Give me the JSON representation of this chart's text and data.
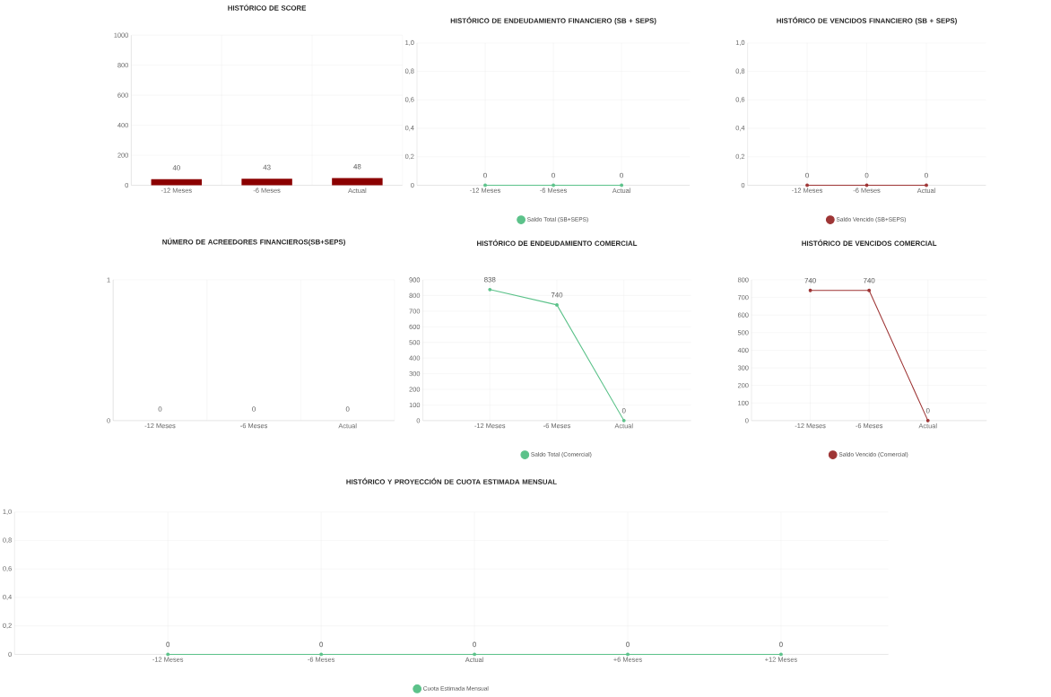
{
  "chart_data": [
    {
      "type": "bar",
      "title": "HISTÓRICO DE SCORE",
      "categories": [
        "-12 Meses",
        "-6 Meses",
        "Actual"
      ],
      "values": [
        40,
        43,
        48
      ],
      "color": "#8b0000",
      "ylim": [
        0,
        1000
      ],
      "yticks": [
        0,
        200,
        400,
        600,
        800,
        1000
      ],
      "grid": true,
      "data_labels": true
    },
    {
      "type": "line",
      "title": "HISTÓRICO DE ENDEUDAMIENTO FINANCIERO (SB + SEPS)",
      "categories": [
        "-12 Meses",
        "-6 Meses",
        "Actual"
      ],
      "series": [
        {
          "name": "Saldo Total (SB+SEPS)",
          "color": "#5cc28a",
          "values": [
            0,
            0,
            0
          ]
        }
      ],
      "ylim": [
        0,
        1
      ],
      "yticks": [
        0,
        {
          "value": 0.2,
          "label": "0,2"
        },
        {
          "value": 0.4,
          "label": "0,4"
        },
        {
          "value": 0.6,
          "label": "0,6"
        },
        {
          "value": 0.8,
          "label": "0,8"
        },
        {
          "value": 1,
          "label": "1,0"
        }
      ],
      "grid": true,
      "legend": "bottom",
      "marker": "circle",
      "line_style": "solid",
      "data_labels": true
    },
    {
      "type": "line",
      "title": "HISTÓRICO DE VENCIDOS FINANCIERO (SB + SEPS)",
      "categories": [
        "-12 Meses",
        "-6 Meses",
        "Actual"
      ],
      "series": [
        {
          "name": "Saldo Vencido (SB+SEPS)",
          "color": "#9e3535",
          "values": [
            0,
            0,
            0
          ]
        }
      ],
      "ylim": [
        0,
        1
      ],
      "yticks": [
        0,
        {
          "value": 0.2,
          "label": "0,2"
        },
        {
          "value": 0.4,
          "label": "0,4"
        },
        {
          "value": 0.6,
          "label": "0,6"
        },
        {
          "value": 0.8,
          "label": "0,8"
        },
        {
          "value": 1,
          "label": "1,0"
        }
      ],
      "grid": true,
      "legend": "bottom",
      "marker": "circle",
      "line_style": "solid",
      "data_labels": true
    },
    {
      "type": "bar",
      "title": "NÚMERO DE ACREEDORES FINANCIEROS(SB+SEPS)",
      "categories": [
        "-12 Meses",
        "-6 Meses",
        "Actual"
      ],
      "values": [
        0,
        0,
        0
      ],
      "color": "#8b0000",
      "ylim": [
        0,
        1
      ],
      "yticks": [
        0,
        1
      ],
      "grid": true,
      "data_labels": true
    },
    {
      "type": "line",
      "title": "HISTÓRICO DE ENDEUDAMIENTO COMERCIAL",
      "categories": [
        "-12 Meses",
        "-6 Meses",
        "Actual"
      ],
      "series": [
        {
          "name": "Saldo Total (Comercial)",
          "color": "#5cc28a",
          "values": [
            838,
            740,
            0
          ]
        }
      ],
      "ylim": [
        0,
        900
      ],
      "yticks": [
        0,
        100,
        200,
        300,
        400,
        500,
        600,
        700,
        800,
        900
      ],
      "grid": true,
      "legend": "bottom",
      "marker": "circle",
      "line_style": "solid",
      "data_labels": true
    },
    {
      "type": "line",
      "title": "HISTÓRICO DE VENCIDOS COMERCIAL",
      "categories": [
        "-12 Meses",
        "-6 Meses",
        "Actual"
      ],
      "series": [
        {
          "name": "Saldo Vencido (Comercial)",
          "color": "#9e3535",
          "values": [
            740,
            740,
            0
          ]
        }
      ],
      "ylim": [
        0,
        800
      ],
      "yticks": [
        0,
        100,
        200,
        300,
        400,
        500,
        600,
        700,
        800
      ],
      "grid": true,
      "legend": "bottom",
      "marker": "circle",
      "line_style": "solid",
      "data_labels": true
    },
    {
      "type": "line",
      "title": "HISTÓRICO Y PROYECCIÓN DE CUOTA ESTIMADA MENSUAL",
      "categories": [
        "-12 Meses",
        "-6 Meses",
        "Actual",
        "+6 Meses",
        "+12 Meses"
      ],
      "series": [
        {
          "name": "Cuota Estimada Mensual",
          "color": "#5cc28a",
          "values": [
            0,
            0,
            0,
            0,
            0
          ]
        }
      ],
      "ylim": [
        0,
        1
      ],
      "yticks": [
        0,
        {
          "value": 0.2,
          "label": "0,2"
        },
        {
          "value": 0.4,
          "label": "0,4"
        },
        {
          "value": 0.6,
          "label": "0,6"
        },
        {
          "value": 0.8,
          "label": "0,8"
        },
        {
          "value": 1,
          "label": "1,0"
        }
      ],
      "grid": true,
      "legend": "bottom",
      "marker": "circle",
      "line_style": "solid",
      "data_labels": true
    }
  ]
}
